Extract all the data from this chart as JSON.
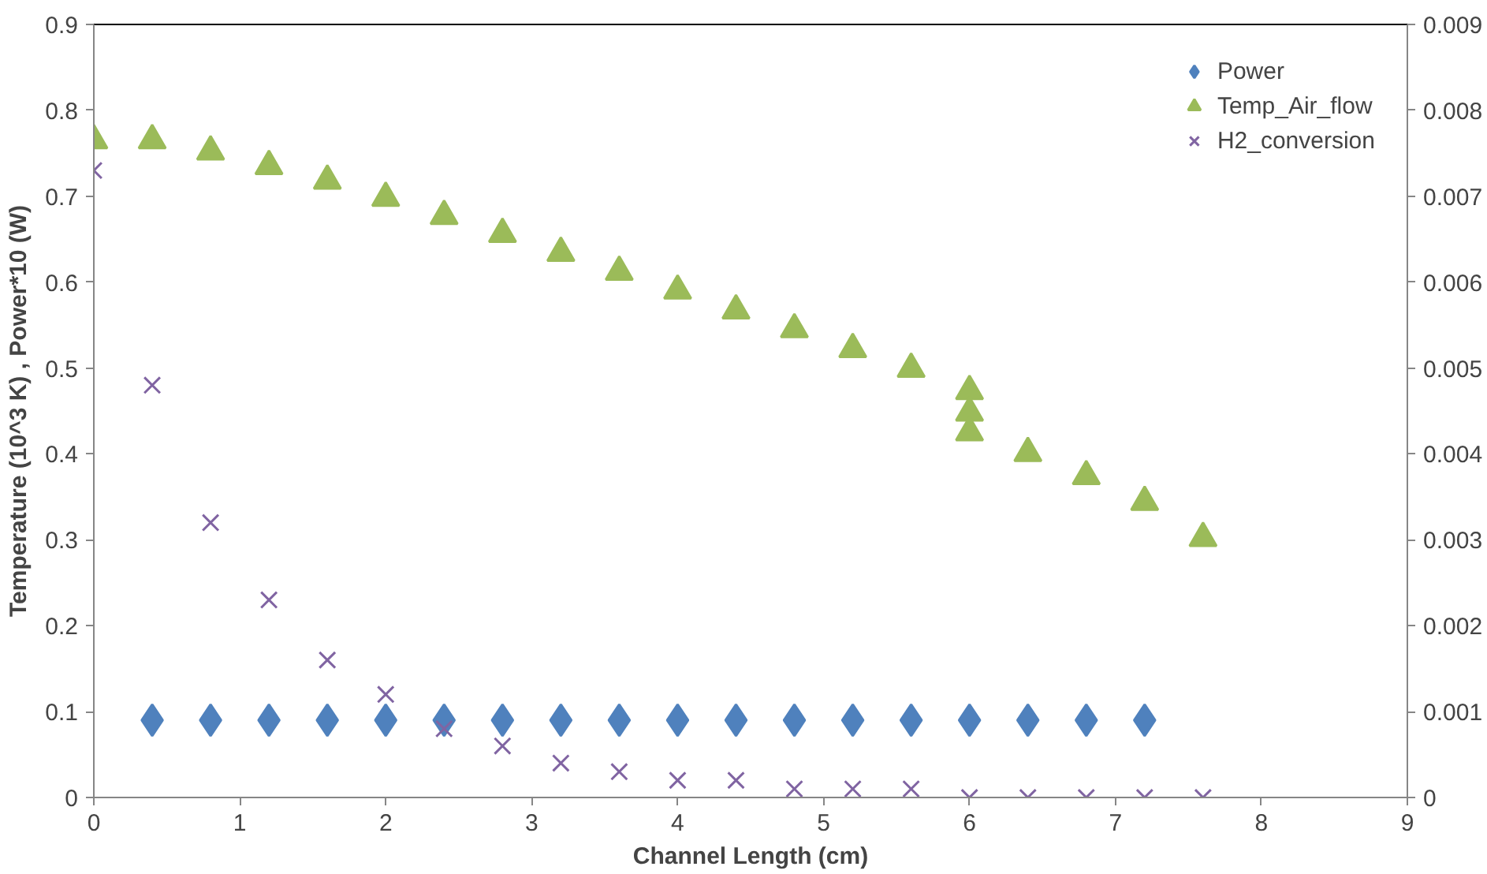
{
  "chart_data": {
    "type": "scatter",
    "xlabel": "Channel Length (cm)",
    "ylabel": "Temperature (10^3 K) , Power*10 (W)",
    "xlim": [
      0,
      9
    ],
    "xticks": [
      0,
      1,
      2,
      3,
      4,
      5,
      6,
      7,
      8,
      9
    ],
    "ylim": [
      0,
      0.9
    ],
    "yticks": [
      0,
      0.1,
      0.2,
      0.3,
      0.4,
      0.5,
      0.6,
      0.7,
      0.8,
      0.9
    ],
    "y2lim": [
      0,
      0.009
    ],
    "y2ticks": [
      0,
      0.001,
      0.002,
      0.003,
      0.004,
      0.005,
      0.006,
      0.007,
      0.008,
      0.009
    ],
    "grid": false,
    "legend": "top right",
    "series": [
      {
        "name": "Power",
        "color": "#4f81bd",
        "marker": "diamond",
        "x": [
          0.4,
          0.8,
          1.2,
          1.6,
          2.0,
          2.4,
          2.8,
          3.2,
          3.6,
          4.0,
          4.4,
          4.8,
          5.2,
          5.6,
          6.0,
          6.4,
          6.8,
          7.2
        ],
        "values": [
          0.09,
          0.09,
          0.09,
          0.09,
          0.09,
          0.09,
          0.09,
          0.09,
          0.09,
          0.09,
          0.09,
          0.09,
          0.09,
          0.09,
          0.09,
          0.09,
          0.09,
          0.09
        ]
      },
      {
        "name": "Temp_Air_flow",
        "color": "#9bbb59",
        "marker": "triangle",
        "x": [
          0,
          0.4,
          0.8,
          1.2,
          1.6,
          2.0,
          2.4,
          2.8,
          3.2,
          3.6,
          4.0,
          4.4,
          4.8,
          5.2,
          5.6,
          6.0,
          6.0,
          6.0,
          6.4,
          6.8,
          7.2,
          7.6
        ],
        "values": [
          0.765,
          0.765,
          0.752,
          0.735,
          0.718,
          0.698,
          0.677,
          0.656,
          0.634,
          0.612,
          0.59,
          0.567,
          0.545,
          0.522,
          0.499,
          0.473,
          0.448,
          0.425,
          0.401,
          0.374,
          0.344,
          0.302
        ]
      },
      {
        "name": "H2_conversion",
        "color": "#8064a2",
        "marker": "cross",
        "axis": "y2",
        "x": [
          0,
          0.4,
          0.8,
          1.2,
          1.6,
          2.0,
          2.4,
          2.8,
          3.2,
          3.6,
          4.0,
          4.4,
          4.8,
          5.2,
          5.6,
          6.0,
          6.4,
          6.8,
          7.2,
          7.6
        ],
        "values": [
          0.0073,
          0.0048,
          0.0032,
          0.0023,
          0.0016,
          0.0012,
          0.0008,
          0.0006,
          0.0004,
          0.0003,
          0.0002,
          0.0002,
          0.0001,
          0.0001,
          0.0001,
          0,
          0,
          0,
          0,
          0
        ]
      }
    ]
  }
}
